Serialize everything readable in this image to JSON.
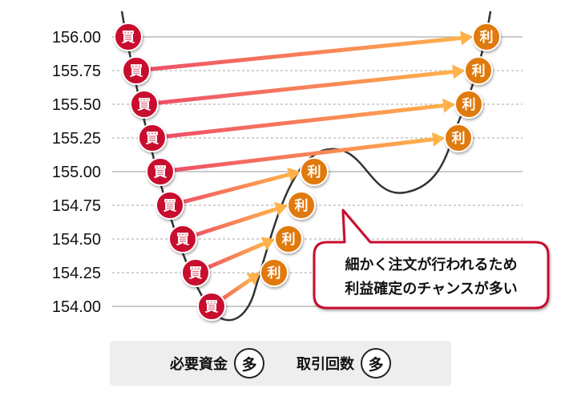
{
  "y_axis": {
    "labels": [
      "156.00",
      "155.75",
      "155.50",
      "155.25",
      "155.00",
      "154.75",
      "154.50",
      "154.25",
      "154.00"
    ]
  },
  "badges": {
    "buy_label": "買",
    "profit_label": "利"
  },
  "trades": [
    {
      "buy_price": 155.75,
      "take_profit_price": 156.0
    },
    {
      "buy_price": 155.5,
      "take_profit_price": 155.75
    },
    {
      "buy_price": 155.25,
      "take_profit_price": 155.5
    },
    {
      "buy_price": 155.0,
      "take_profit_price": 155.25
    },
    {
      "buy_price": 154.75,
      "take_profit_price": 155.0
    },
    {
      "buy_price": 154.5,
      "take_profit_price": 154.75
    },
    {
      "buy_price": 154.25,
      "take_profit_price": 154.5
    },
    {
      "buy_price": 154.0,
      "take_profit_price": 154.25
    }
  ],
  "callout": {
    "line1": "細かく注文が行われるため",
    "line2": "利益確定のチャンスが多い"
  },
  "summary": {
    "capital_label": "必要資金",
    "capital_value": "多",
    "trades_label": "取引回数",
    "trades_value": "多"
  },
  "colors": {
    "buy_badge": "#c8102e",
    "profit_badge": "#e07a10",
    "arrow_start": "#ee4a6a",
    "arrow_end": "#ffb14a",
    "price_line": "#333333",
    "callout_border": "#c8102e"
  }
}
